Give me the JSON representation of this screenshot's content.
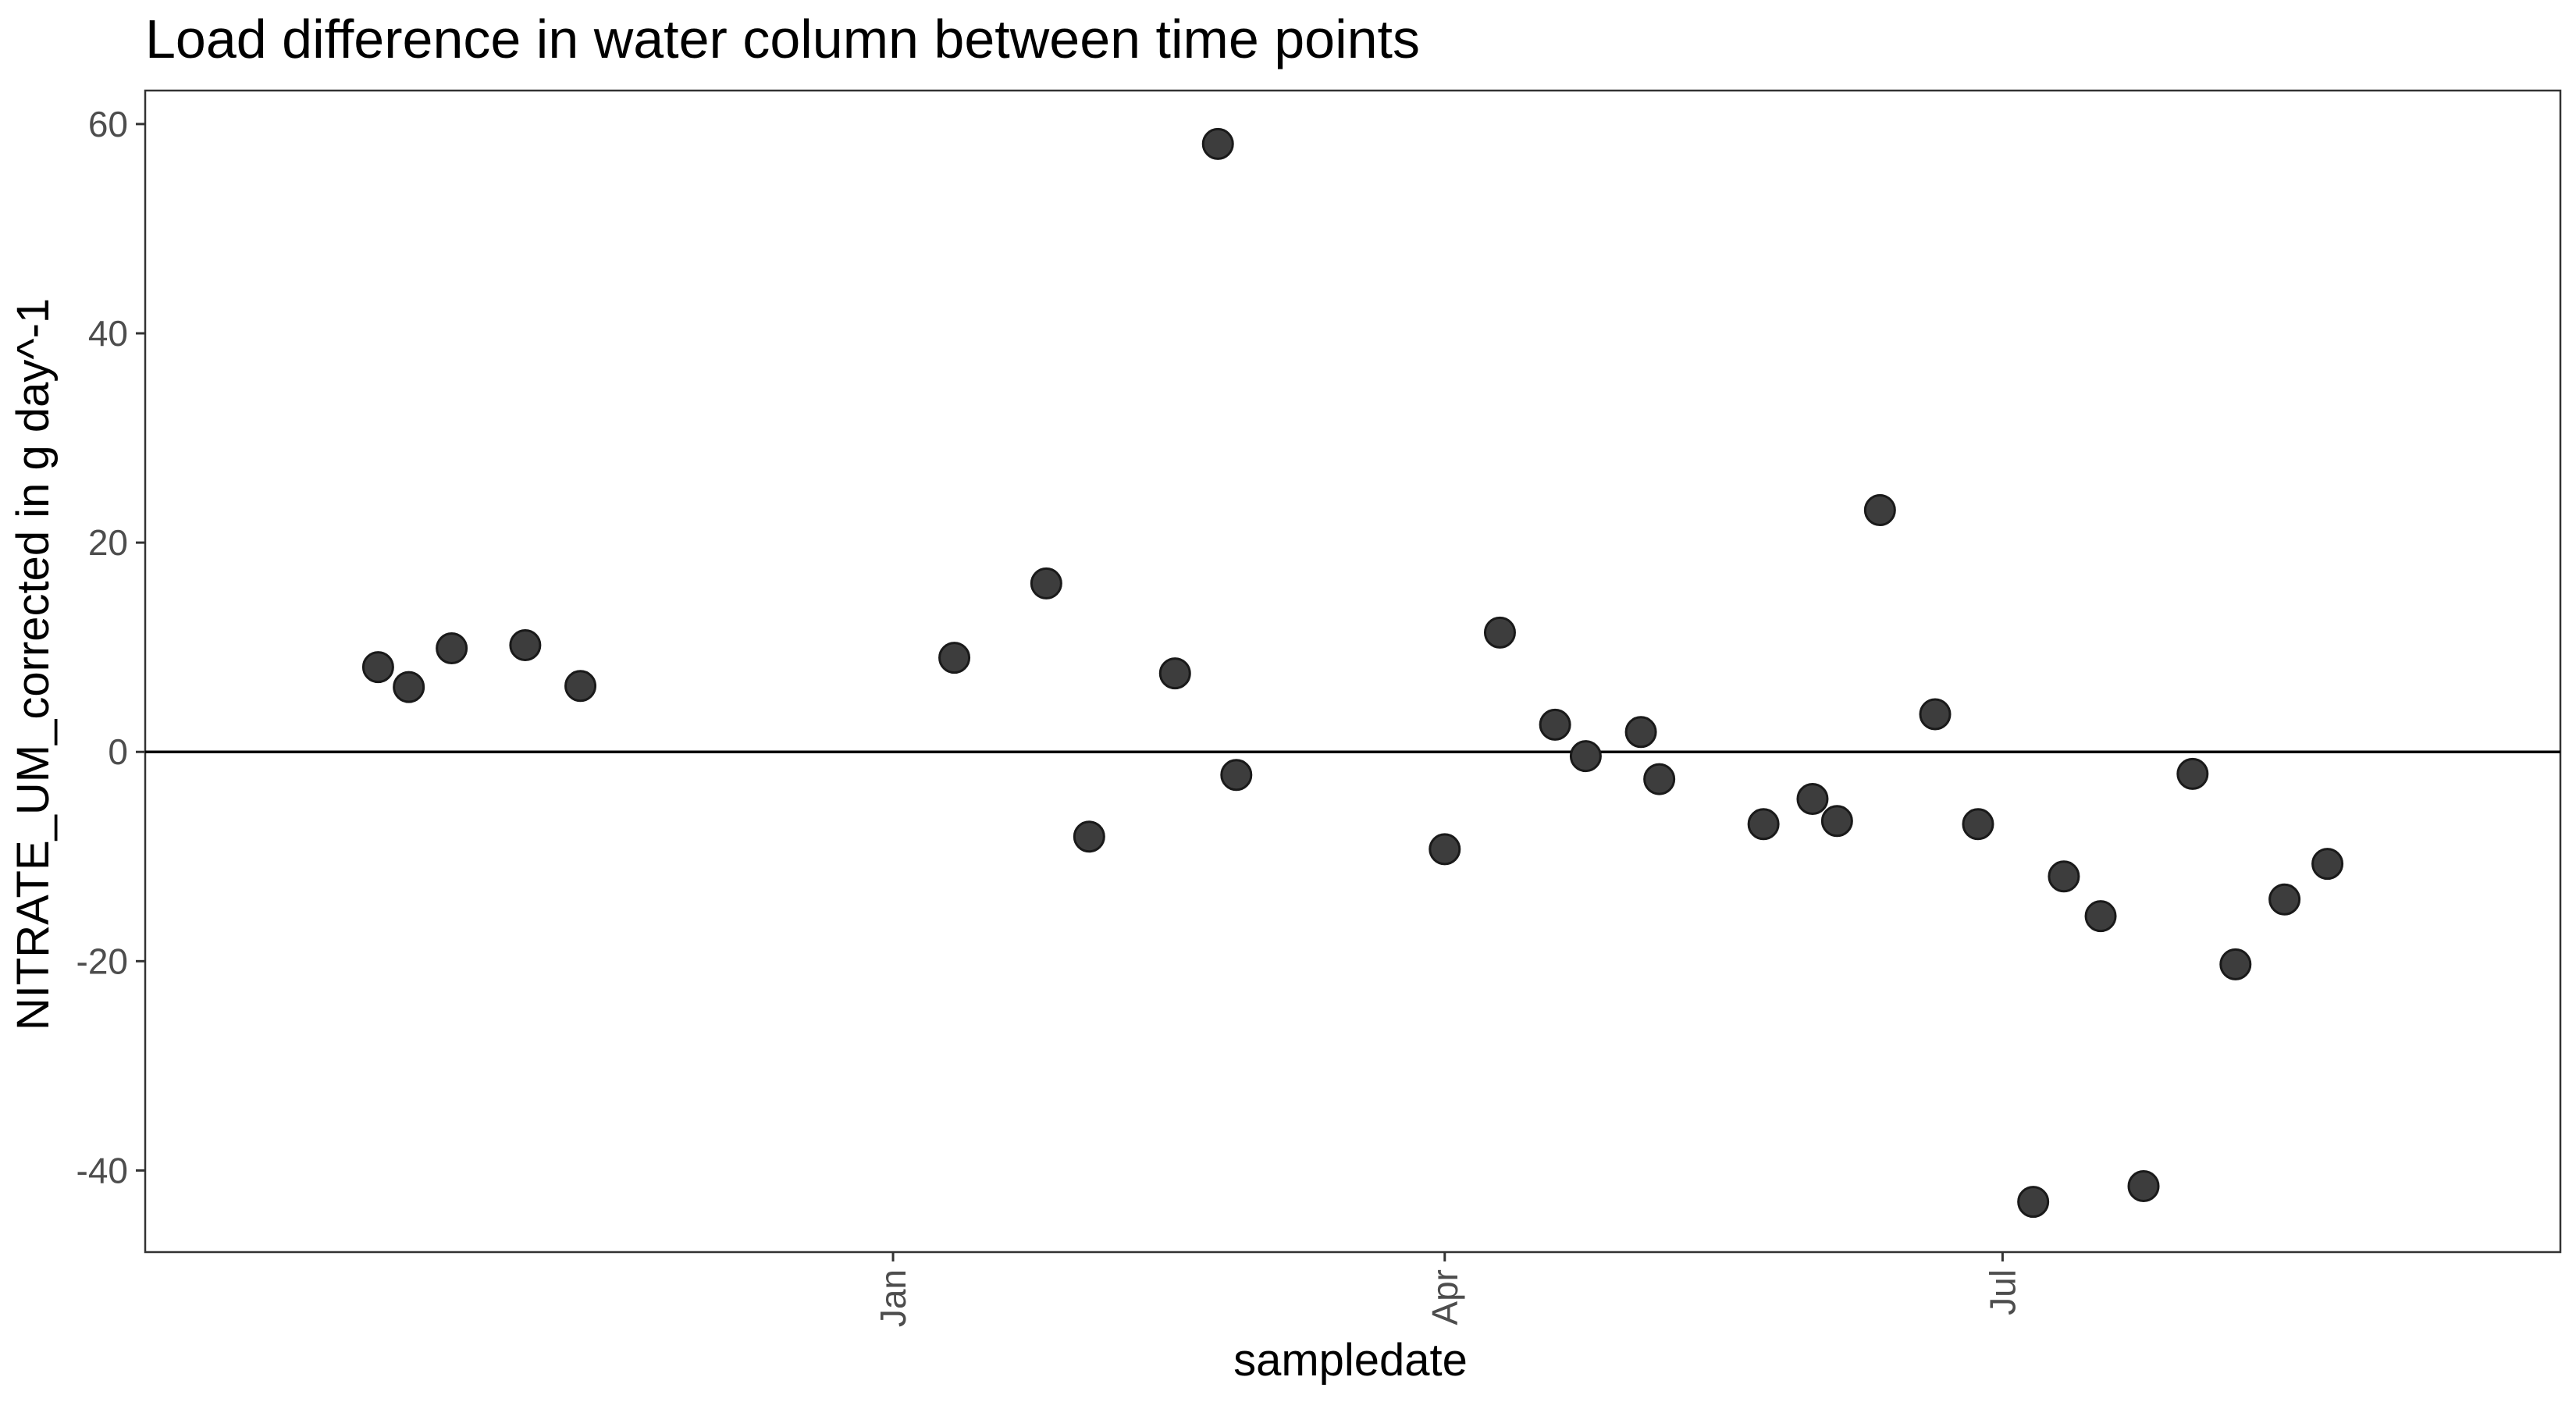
{
  "chart_data": {
    "type": "scatter",
    "title": "Load difference in water column between time points",
    "xlabel": "sampledate",
    "ylabel": "NITRATE_UM_corrected in g day^-1",
    "x_tick_labels": [
      "Jan",
      "Apr",
      "Jul"
    ],
    "x_ticks": [
      "2018-01-01",
      "2018-04-01",
      "2018-07-01"
    ],
    "xlim": [
      "2017-09-01",
      "2018-09-30"
    ],
    "y_ticks": [
      -40,
      -20,
      0,
      20,
      40,
      60
    ],
    "ylim": [
      -47.8,
      63.2
    ],
    "grid": false,
    "hline": 0,
    "point_color": "#3d3d3d",
    "points": [
      {
        "x": "2017-10-09",
        "y": 8.1
      },
      {
        "x": "2017-10-14",
        "y": 6.2
      },
      {
        "x": "2017-10-21",
        "y": 9.9
      },
      {
        "x": "2017-11-02",
        "y": 10.2
      },
      {
        "x": "2017-11-11",
        "y": 6.3
      },
      {
        "x": "2018-01-11",
        "y": 9.0
      },
      {
        "x": "2018-01-26",
        "y": 16.1
      },
      {
        "x": "2018-02-02",
        "y": -8.1
      },
      {
        "x": "2018-02-16",
        "y": 7.5
      },
      {
        "x": "2018-02-23",
        "y": 58.1
      },
      {
        "x": "2018-02-26",
        "y": -2.2
      },
      {
        "x": "2018-04-01",
        "y": -9.3
      },
      {
        "x": "2018-04-10",
        "y": 11.4
      },
      {
        "x": "2018-04-19",
        "y": 2.6
      },
      {
        "x": "2018-04-24",
        "y": -0.4
      },
      {
        "x": "2018-05-03",
        "y": 1.9
      },
      {
        "x": "2018-05-06",
        "y": -2.6
      },
      {
        "x": "2018-05-23",
        "y": -6.9
      },
      {
        "x": "2018-05-31",
        "y": -4.5
      },
      {
        "x": "2018-06-04",
        "y": -6.6
      },
      {
        "x": "2018-06-11",
        "y": 23.1
      },
      {
        "x": "2018-06-20",
        "y": 3.6
      },
      {
        "x": "2018-06-27",
        "y": -6.9
      },
      {
        "x": "2018-07-06",
        "y": -43.0
      },
      {
        "x": "2018-07-11",
        "y": -11.9
      },
      {
        "x": "2018-07-17",
        "y": -15.7
      },
      {
        "x": "2018-07-24",
        "y": -41.5
      },
      {
        "x": "2018-08-01",
        "y": -2.1
      },
      {
        "x": "2018-08-08",
        "y": -20.3
      },
      {
        "x": "2018-08-16",
        "y": -14.1
      },
      {
        "x": "2018-08-23",
        "y": -10.7
      }
    ]
  }
}
